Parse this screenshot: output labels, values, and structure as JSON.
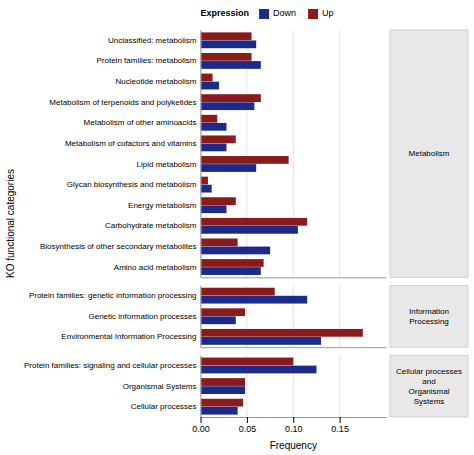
{
  "chart_data": [
    {
      "type": "bar",
      "orientation": "horizontal",
      "title": "Metabolism",
      "categories": [
        "Unclassified: metabolism",
        "Protein families: metabolism",
        "Nucleotide metabolism",
        "Metabolism of terpenoids and polyketides",
        "Metabolism of other aminoacids",
        "Metabolism of cofactors and vitamins",
        "Lipid metabolism",
        "Glycan biosynthesis and metabolism",
        "Energy metabolism",
        "Carbohydrate metabolism",
        "Biosynthesis of other secondary metabolites",
        "Amino acid metabolism"
      ],
      "series": [
        {
          "name": "Up",
          "color": "#8B1A1A",
          "values": [
            0.055,
            0.055,
            0.013,
            0.065,
            0.018,
            0.038,
            0.095,
            0.008,
            0.038,
            0.115,
            0.04,
            0.068
          ]
        },
        {
          "name": "Down",
          "color": "#1C2A8A",
          "values": [
            0.06,
            0.065,
            0.02,
            0.058,
            0.028,
            0.028,
            0.06,
            0.012,
            0.028,
            0.105,
            0.075,
            0.065
          ]
        }
      ],
      "xlim": [
        0,
        0.2
      ],
      "xticks": [
        {
          "value": 0,
          "label": "0.00"
        },
        0.05,
        {
          "value": 0.1,
          "label": "0.10"
        },
        0.15
      ],
      "grid": true,
      "tick_labels": "y",
      "ylabel": "KO functional categories",
      "legend": "top",
      "legend_title": "Expression"
    },
    {
      "type": "bar",
      "orientation": "horizontal",
      "title": "Information Processing",
      "categories": [
        "Protein families: genetic information processing",
        "Genetic information processes",
        "Environmental Information Processing"
      ],
      "series": [
        {
          "name": "Up",
          "color": "#8B1A1A",
          "values": [
            0.08,
            0.048,
            0.175
          ]
        },
        {
          "name": "Down",
          "color": "#1C2A8A",
          "values": [
            0.115,
            0.038,
            0.13
          ]
        }
      ],
      "xlim": [
        0,
        0.2
      ],
      "xticks": [
        {
          "value": 0,
          "label": "0.00"
        },
        0.05,
        {
          "value": 0.1,
          "label": "0.10"
        },
        0.15
      ],
      "grid": true,
      "tick_labels": "y"
    },
    {
      "type": "bar",
      "orientation": "horizontal",
      "title": "Cellular processes and\nOrganismal Systems",
      "categories": [
        "Protein families: signaling and cellular processes",
        "Organismal Systems",
        "Cellular processes"
      ],
      "series": [
        {
          "name": "Up",
          "color": "#8B1A1A",
          "values": [
            0.1,
            0.048,
            0.046
          ]
        },
        {
          "name": "Down",
          "color": "#1C2A8A",
          "values": [
            0.125,
            0.048,
            0.04
          ]
        }
      ],
      "xlim": [
        0,
        0.2
      ],
      "xticks": [
        {
          "value": 0,
          "label": "0.00"
        },
        0.05,
        {
          "value": 0.1,
          "label": "0.10"
        },
        0.15
      ],
      "grid": true,
      "xlabel": "Frequency"
    }
  ]
}
